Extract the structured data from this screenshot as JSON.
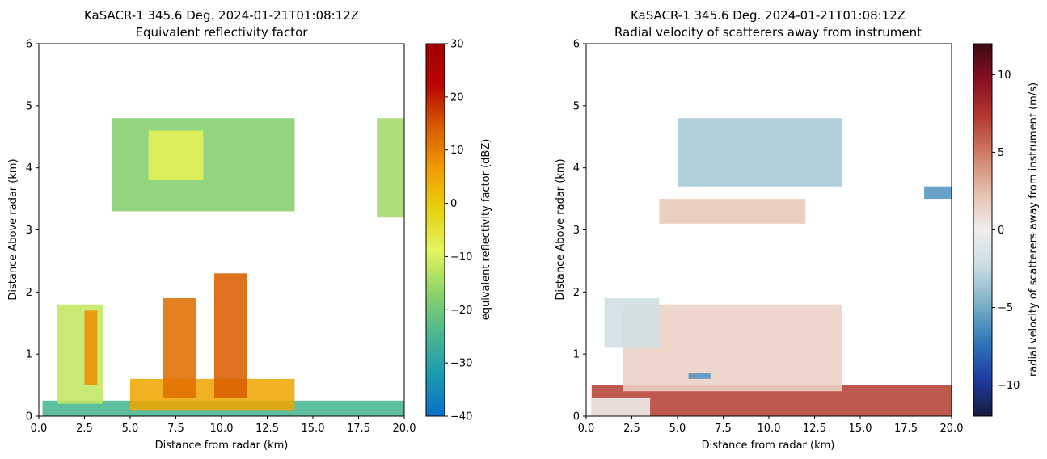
{
  "figure": {
    "colors": {
      "background": "#ffffff",
      "axis": "#000000"
    }
  },
  "chart_data": [
    {
      "type": "heatmap",
      "title_line1": "KaSACR-1 345.6 Deg. 2024-01-21T01:08:12Z",
      "title_line2": "Equivalent reflectivity factor",
      "xlabel": "Distance from radar (km)",
      "ylabel": "Distance Above radar  (km)",
      "xlim": [
        0,
        20
      ],
      "ylim": [
        0,
        6
      ],
      "xticks": [
        "0.0",
        "2.5",
        "5.0",
        "7.5",
        "10.0",
        "12.5",
        "15.0",
        "17.5",
        "20.0"
      ],
      "yticks": [
        "0",
        "1",
        "2",
        "3",
        "4",
        "5",
        "6"
      ],
      "colorbar": {
        "label": "equivalent reflectivity factor (dBZ)",
        "range": [
          -40,
          30
        ],
        "ticks": [
          "30",
          "20",
          "10",
          "0",
          "−10",
          "−20",
          "−30",
          "−40"
        ],
        "colormap": "HomeyerRainbow",
        "stops": [
          "#0a6fc8",
          "#1a9ab0",
          "#4cb890",
          "#8fd468",
          "#e3f55e",
          "#e8d010",
          "#f09a00",
          "#d85a00",
          "#b80400",
          "#a00000"
        ]
      },
      "echoes": [
        {
          "x": [
            0.2,
            20
          ],
          "y": [
            0,
            0.25
          ],
          "dbz": -25
        },
        {
          "x": [
            1,
            3.5
          ],
          "y": [
            0.2,
            1.8
          ],
          "dbz": -12
        },
        {
          "x": [
            2.5,
            3.2
          ],
          "y": [
            0.5,
            1.7
          ],
          "dbz": 8
        },
        {
          "x": [
            5,
            14
          ],
          "y": [
            0.1,
            0.6
          ],
          "dbz": 5
        },
        {
          "x": [
            6.8,
            8.6
          ],
          "y": [
            0.3,
            1.9
          ],
          "dbz": 12
        },
        {
          "x": [
            9.6,
            11.4
          ],
          "y": [
            0.3,
            2.3
          ],
          "dbz": 14
        },
        {
          "x": [
            4,
            14
          ],
          "y": [
            3.3,
            4.8
          ],
          "dbz": -18
        },
        {
          "x": [
            6,
            9
          ],
          "y": [
            3.8,
            4.6
          ],
          "dbz": -8
        },
        {
          "x": [
            18.5,
            20
          ],
          "y": [
            3.2,
            4.8
          ],
          "dbz": -15
        }
      ]
    },
    {
      "type": "heatmap",
      "title_line1": "KaSACR-1 345.6 Deg. 2024-01-21T01:08:12Z",
      "title_line2": "Radial velocity of scatterers away from instrument",
      "xlabel": "Distance from radar (km)",
      "ylabel": "Distance Above radar  (km)",
      "xlim": [
        0,
        20
      ],
      "ylim": [
        0,
        6
      ],
      "xticks": [
        "0.0",
        "2.5",
        "5.0",
        "7.5",
        "10.0",
        "12.5",
        "15.0",
        "17.5",
        "20.0"
      ],
      "yticks": [
        "0",
        "1",
        "2",
        "3",
        "4",
        "5",
        "6"
      ],
      "colorbar": {
        "label": "radial velocity of scatterers away from instrument (m/s)",
        "range": [
          -12,
          12
        ],
        "ticks": [
          "10",
          "5",
          "0",
          "−5",
          "−10"
        ],
        "tick_values": [
          10,
          5,
          0,
          -5,
          -10
        ],
        "colormap": "balance",
        "stops": [
          "#171a3c",
          "#1f3ca0",
          "#2e78b8",
          "#7bb0c8",
          "#c8dce2",
          "#f0eeec",
          "#e6c0ae",
          "#d08068",
          "#b43c30",
          "#8a1020",
          "#3c0a14"
        ]
      },
      "echoes": [
        {
          "x": [
            0.3,
            20
          ],
          "y": [
            0,
            0.5
          ],
          "ms": 7
        },
        {
          "x": [
            0.3,
            3.5
          ],
          "y": [
            0,
            0.3
          ],
          "ms": 0
        },
        {
          "x": [
            2,
            14
          ],
          "y": [
            0.4,
            1.8
          ],
          "ms": 1.5
        },
        {
          "x": [
            1,
            4
          ],
          "y": [
            1.1,
            1.9
          ],
          "ms": -2
        },
        {
          "x": [
            5,
            14
          ],
          "y": [
            3.7,
            4.8
          ],
          "ms": -3.5
        },
        {
          "x": [
            4,
            12
          ],
          "y": [
            3.1,
            3.5
          ],
          "ms": 2
        },
        {
          "x": [
            18.5,
            20
          ],
          "y": [
            3.5,
            3.7
          ],
          "ms": -6
        },
        {
          "x": [
            5.6,
            6.8
          ],
          "y": [
            0.6,
            0.7
          ],
          "ms": -6
        }
      ]
    }
  ]
}
